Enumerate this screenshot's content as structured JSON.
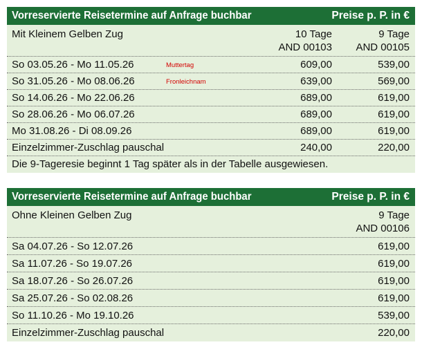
{
  "table1": {
    "header": {
      "title": "Vorreservierte Reisetermine auf Anfrage buchbar",
      "prices": "Preise p. P. in €"
    },
    "subheader": {
      "label": "Mit Kleinem Gelben Zug",
      "col1_line1": "10 Tage",
      "col1_line2": "AND 00103",
      "col2_line1": "9 Tage",
      "col2_line2": "AND 00105"
    },
    "rows": [
      {
        "date": "So  03.05.26 - Mo  11.05.26",
        "note": "Muttertag",
        "p1": "609,00",
        "p2": "539,00"
      },
      {
        "date": "So  31.05.26 - Mo  08.06.26",
        "note": "Fronleichnam",
        "p1": "639,00",
        "p2": "569,00"
      },
      {
        "date": "So  14.06.26 - Mo  22.06.26",
        "note": "",
        "p1": "689,00",
        "p2": "619,00"
      },
      {
        "date": "So  28.06.26 - Mo  06.07.26",
        "note": "",
        "p1": "689,00",
        "p2": "619,00"
      },
      {
        "date": "Mo  31.08.26 - Di   08.09.26",
        "note": "",
        "p1": "689,00",
        "p2": "619,00"
      }
    ],
    "surcharge": {
      "label": "Einzelzimmer-Zuschlag pauschal",
      "p1": "240,00",
      "p2": "220,00"
    },
    "footnote": "Die 9-Tageresie beginnt 1 Tag später als in der Tabelle ausgewiesen."
  },
  "table2": {
    "header": {
      "title": "Vorreservierte Reisetermine auf Anfrage buchbar",
      "prices": "Preise p. P. in €"
    },
    "subheader": {
      "label": "Ohne Kleinen Gelben Zug",
      "col_line1": "9 Tage",
      "col_line2": "AND 00106"
    },
    "rows": [
      {
        "date": "Sa  04.07.26 - So  12.07.26",
        "p": "619,00"
      },
      {
        "date": "Sa  11.07.26 - So  19.07.26",
        "p": "619,00"
      },
      {
        "date": "Sa  18.07.26 - So  26.07.26",
        "p": "619,00"
      },
      {
        "date": "Sa  25.07.26 - So  02.08.26",
        "p": "619,00"
      },
      {
        "date": "So  11.10.26 - Mo  19.10.26",
        "p": "539,00"
      }
    ],
    "surcharge": {
      "label": "Einzelzimmer-Zuschlag pauschal",
      "p": "220,00"
    }
  }
}
